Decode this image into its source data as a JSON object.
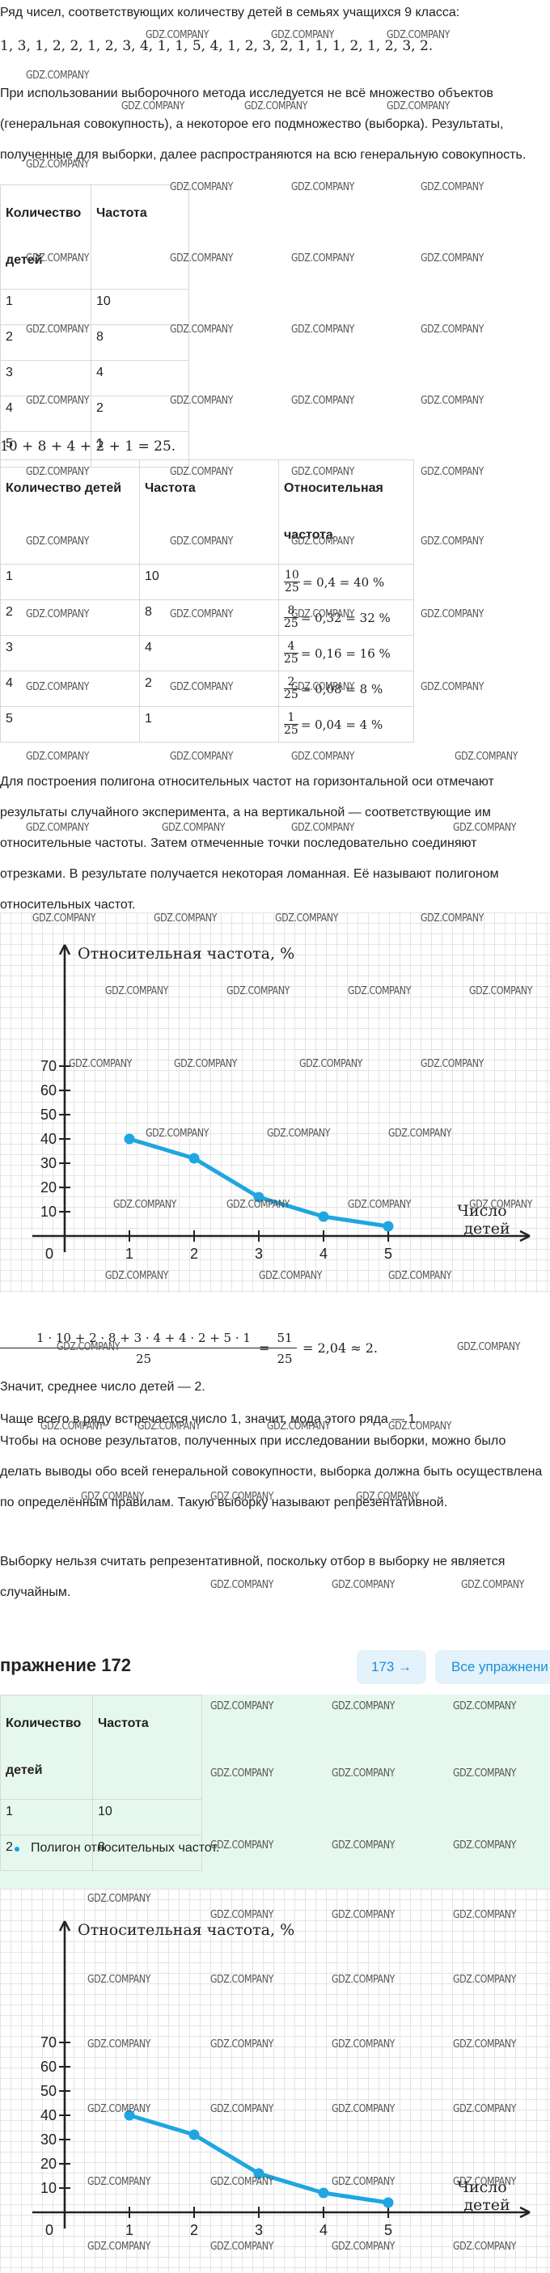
{
  "section1": {
    "intro": "Ряд чисел, соответствующих количеству детей в семьях учащихся 9 класса:",
    "series": "1, 3, 1, 2, 2, 1, 2, 3, 4, 1, 1, 5, 4, 1, 2, 3, 2, 1, 1, 1, 2, 1, 2, 3, 2.",
    "para": "При использовании выборочного метода исследуется не всё множество объектов (генеральная совокупность), а некоторое его подмножество (выборка). Результаты, полученные для выборки, далее распространяются на всю генеральную совокупность."
  },
  "table1": {
    "headers": [
      "Количество детей",
      "Частота"
    ],
    "rows": [
      [
        "1",
        "10"
      ],
      [
        "2",
        "8"
      ],
      [
        "3",
        "4"
      ],
      [
        "4",
        "2"
      ],
      [
        "5",
        "1"
      ]
    ]
  },
  "sum_equation": "10 + 8 + 4 + 2 + 1 = 25.",
  "table2": {
    "headers": [
      "Количество детей",
      "Частота",
      "Относительная частота"
    ],
    "rows": [
      {
        "k": "1",
        "f": "10",
        "num": "10",
        "den": "25",
        "rest": "= 0,4 = 40 %"
      },
      {
        "k": "2",
        "f": "8",
        "num": "8",
        "den": "25",
        "rest": "= 0,32 = 32 %"
      },
      {
        "k": "3",
        "f": "4",
        "num": "4",
        "den": "25",
        "rest": "= 0,16 = 16 %"
      },
      {
        "k": "4",
        "f": "2",
        "num": "2",
        "den": "25",
        "rest": "= 0,08 = 8 %"
      },
      {
        "k": "5",
        "f": "1",
        "num": "1",
        "den": "25",
        "rest": "= 0,04 = 4 %"
      }
    ]
  },
  "polygon_text": "Для построения полигона относительных частот на горизонтальной оси отмечают результаты случайного эксперимента, а на вертикальной — соответствующие им относительные частоты. Затем отмеченные точки последовательно соединяют отрезками. В результате получается некоторая ломанная. Её называют полигоном относительных частот.",
  "chart_data": [
    {
      "type": "line",
      "ylabel": "Относительная частота, %",
      "xlabel": "Число детей",
      "x": [
        1,
        2,
        3,
        4,
        5
      ],
      "y": [
        40,
        32,
        16,
        8,
        4
      ],
      "yticks": [
        10,
        20,
        30,
        40,
        50,
        60,
        70
      ],
      "xticks": [
        1,
        2,
        3,
        4,
        5
      ],
      "origin_label": "0",
      "color": "#1fa6e0",
      "grid": true
    },
    {
      "type": "line",
      "ylabel": "Относительная частота, %",
      "xlabel": "Число детей",
      "x": [
        1,
        2,
        3,
        4,
        5
      ],
      "y": [
        40,
        32,
        16,
        8,
        4
      ],
      "yticks": [
        10,
        20,
        30,
        40,
        50,
        60,
        70
      ],
      "xticks": [
        1,
        2,
        3,
        4,
        5
      ],
      "origin_label": "0",
      "color": "#1fa6e0",
      "grid": true
    }
  ],
  "mean_formula": {
    "numerator": "1 · 10 + 2 · 8 + 3 · 4 + 4 · 2 + 5 · 1",
    "denominator": "25",
    "eq1": "=",
    "num2": "51",
    "den2": "25",
    "rest": "= 2,04 ≈ 2."
  },
  "texts2": {
    "mean": "Значит, среднее число детей — 2.",
    "mode": "Чаще всего в ряду встречается число 1, значит, мода этого ряда — 1.",
    "repr": "Чтобы на основе результатов, полученных при исследовании выборки, можно было делать выводы обо всей генеральной совокупности, выборка должна быть осуществлена по определённым правилам. Такую выборку называют репрезентативной.",
    "not_repr": "Выборку нельзя считать репрезентативной, поскольку отбор в выборку не является случайным."
  },
  "exercise": {
    "title": "пражнение 172",
    "next_button": "173 →",
    "all_button": "Все упражнени",
    "table_headers": [
      "Количество детей",
      "Частота"
    ],
    "table_rows": [
      [
        "1",
        "10"
      ],
      [
        "2",
        "8"
      ]
    ],
    "bullet": "Полигон относительных частот."
  },
  "watermark": "GDZ.COMPANY"
}
